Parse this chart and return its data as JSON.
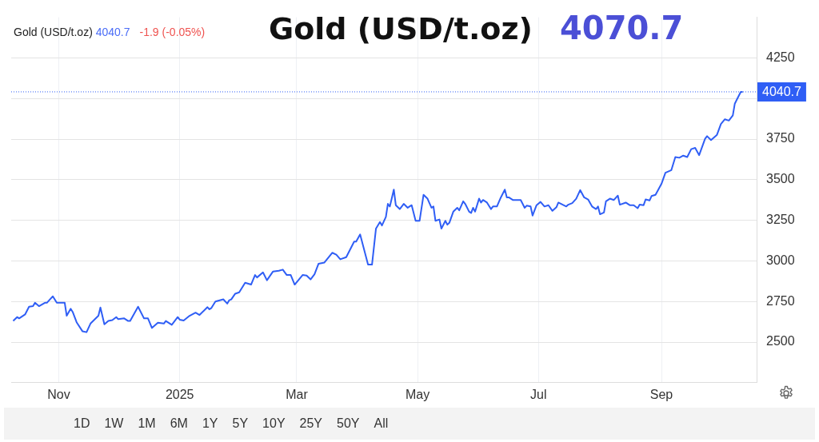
{
  "chart_data": {
    "type": "line",
    "title": "Gold (USD/t.oz)",
    "subtitle": "Gold (USD/t.oz)",
    "annotations": [
      "4070.7",
      "4040.7",
      "-1.9 (-0.05%)",
      "1D",
      "1W",
      "1M",
      "6M",
      "1Y",
      "5Y",
      "10Y",
      "25Y",
      "50Y",
      "All"
    ],
    "x": [
      "2024-10-09",
      "2024-10-11",
      "2024-10-12",
      "2024-10-15",
      "2024-10-17",
      "2024-10-19",
      "2024-10-20",
      "2024-10-22",
      "2024-10-25",
      "2024-10-26",
      "2024-10-28",
      "2024-10-29",
      "2024-10-31",
      "2024-11-04",
      "2024-11-05",
      "2024-11-07",
      "2024-11-08",
      "2024-11-10",
      "2024-11-13",
      "2024-11-15",
      "2024-11-17",
      "2024-11-21",
      "2024-11-22",
      "2024-11-24",
      "2024-11-26",
      "2024-11-28",
      "2024-11-30",
      "2024-12-01",
      "2024-12-04",
      "2024-12-06",
      "2024-12-07",
      "2024-12-11",
      "2024-12-14",
      "2024-12-16",
      "2024-12-18",
      "2024-12-21",
      "2024-12-24",
      "2024-12-25",
      "2024-12-28",
      "2024-12-31",
      "2025-01-01",
      "2025-01-03",
      "2025-01-06",
      "2025-01-09",
      "2025-01-11",
      "2025-01-15",
      "2025-01-16",
      "2025-01-17",
      "2025-01-19",
      "2025-01-23",
      "2025-01-25",
      "2025-01-26",
      "2025-01-27",
      "2025-01-29",
      "2025-01-31",
      "2025-02-03",
      "2025-02-06",
      "2025-02-08",
      "2025-02-09",
      "2025-02-12",
      "2025-02-14",
      "2025-02-17",
      "2025-02-20",
      "2025-02-22",
      "2025-02-24",
      "2025-02-26",
      "2025-02-28",
      "2025-03-04",
      "2025-03-06",
      "2025-03-08",
      "2025-03-10",
      "2025-03-12",
      "2025-03-15",
      "2025-03-19",
      "2025-03-21",
      "2025-03-23",
      "2025-03-26",
      "2025-03-30",
      "2025-03-31",
      "2025-04-02",
      "2025-04-06",
      "2025-04-08",
      "2025-04-10",
      "2025-04-12",
      "2025-04-13",
      "2025-04-15",
      "2025-04-16",
      "2025-04-17",
      "2025-04-19",
      "2025-04-20",
      "2025-04-22",
      "2025-04-24",
      "2025-04-26",
      "2025-04-28",
      "2025-04-30",
      "2025-05-02",
      "2025-05-04",
      "2025-05-06",
      "2025-05-08",
      "2025-05-09",
      "2025-05-10",
      "2025-05-12",
      "2025-05-13",
      "2025-05-15",
      "2025-05-16",
      "2025-05-17",
      "2025-05-19",
      "2025-05-21",
      "2025-05-22",
      "2025-05-24",
      "2025-05-25",
      "2025-05-27",
      "2025-05-28",
      "2025-05-29",
      "2025-05-30",
      "2025-06-01",
      "2025-06-02",
      "2025-06-03",
      "2025-06-05",
      "2025-06-07",
      "2025-06-08",
      "2025-06-10",
      "2025-06-12",
      "2025-06-14",
      "2025-06-15",
      "2025-06-16",
      "2025-06-18",
      "2025-06-22",
      "2025-06-24",
      "2025-06-25",
      "2025-06-27",
      "2025-06-28",
      "2025-06-30",
      "2025-07-02",
      "2025-07-04",
      "2025-07-06",
      "2025-07-08",
      "2025-07-10",
      "2025-07-11",
      "2025-07-15",
      "2025-07-16",
      "2025-07-18",
      "2025-07-20",
      "2025-07-22",
      "2025-07-24",
      "2025-07-26",
      "2025-07-28",
      "2025-07-30",
      "2025-07-31",
      "2025-08-01",
      "2025-08-03",
      "2025-08-04",
      "2025-08-06",
      "2025-08-08",
      "2025-08-10",
      "2025-08-11",
      "2025-08-14",
      "2025-08-16",
      "2025-08-18",
      "2025-08-20",
      "2025-08-21",
      "2025-08-23",
      "2025-08-24",
      "2025-08-26",
      "2025-08-27",
      "2025-08-29",
      "2025-09-01",
      "2025-09-03",
      "2025-09-06",
      "2025-09-08",
      "2025-09-10",
      "2025-09-12",
      "2025-09-14",
      "2025-09-16",
      "2025-09-18",
      "2025-09-20",
      "2025-09-23",
      "2025-09-24",
      "2025-09-26",
      "2025-09-29",
      "2025-10-01",
      "2025-10-03",
      "2025-10-05",
      "2025-10-07",
      "2025-10-08",
      "2025-10-09",
      "2025-10-11",
      "2025-10-12"
    ],
    "values": [
      2630,
      2654,
      2646,
      2670,
      2718,
      2721,
      2742,
      2721,
      2742,
      2742,
      2769,
      2782,
      2742,
      2742,
      2662,
      2705,
      2686,
      2622,
      2566,
      2561,
      2614,
      2662,
      2713,
      2609,
      2630,
      2635,
      2654,
      2641,
      2646,
      2630,
      2630,
      2718,
      2646,
      2646,
      2587,
      2619,
      2614,
      2630,
      2606,
      2654,
      2638,
      2633,
      2662,
      2681,
      2667,
      2715,
      2702,
      2710,
      2750,
      2763,
      2737,
      2758,
      2763,
      2798,
      2806,
      2865,
      2854,
      2913,
      2898,
      2929,
      2881,
      2934,
      2939,
      2946,
      2913,
      2913,
      2854,
      2913,
      2910,
      2886,
      2918,
      2982,
      2990,
      3050,
      3038,
      3010,
      3023,
      3119,
      3119,
      3163,
      2977,
      2977,
      3199,
      3239,
      3218,
      3271,
      3351,
      3335,
      3439,
      3343,
      3319,
      3351,
      3327,
      3343,
      3247,
      3247,
      3407,
      3383,
      3327,
      3335,
      3247,
      3255,
      3199,
      3247,
      3223,
      3234,
      3303,
      3327,
      3311,
      3367,
      3351,
      3303,
      3295,
      3327,
      3303,
      3383,
      3359,
      3375,
      3359,
      3319,
      3335,
      3335,
      3391,
      3439,
      3391,
      3391,
      3375,
      3375,
      3327,
      3340,
      3335,
      3279,
      3343,
      3363,
      3335,
      3343,
      3308,
      3330,
      3359,
      3335,
      3346,
      3356,
      3383,
      3436,
      3391,
      3378,
      3335,
      3319,
      3335,
      3287,
      3298,
      3367,
      3383,
      3375,
      3402,
      3346,
      3359,
      3343,
      3343,
      3324,
      3346,
      3343,
      3378,
      3372,
      3399,
      3407,
      3474,
      3543,
      3559,
      3639,
      3635,
      3648,
      3639,
      3688,
      3696,
      3651,
      3752,
      3768,
      3744,
      3776,
      3843,
      3872,
      3864,
      3896,
      3968,
      3992,
      4040.7,
      4040.7
    ],
    "color": "#2f5ef5",
    "xlim": [
      "2024-10-08",
      "2025-10-19"
    ],
    "xticks": [
      {
        "value": "2024-11-01",
        "label": "Nov"
      },
      {
        "value": "2025-01-01",
        "label": "2025"
      },
      {
        "value": "2025-03-01",
        "label": "Mar"
      },
      {
        "value": "2025-05-01",
        "label": "May"
      },
      {
        "value": "2025-07-01",
        "label": "Jul"
      },
      {
        "value": "2025-09-01",
        "label": "Sep"
      }
    ],
    "ylim": [
      2250,
      4500
    ],
    "yticks": [
      2500,
      2750,
      3000,
      3250,
      3500,
      3750,
      {
        "value": 4000,
        "label": null
      },
      4250
    ],
    "ref_lines": [
      {
        "axis": "y",
        "value": 4040.7,
        "label": "4040.7",
        "color": "#2f5ef5",
        "line_style": "dotted"
      }
    ],
    "grid": true,
    "legend": false,
    "marker": "none",
    "line_style": "solid"
  }
}
